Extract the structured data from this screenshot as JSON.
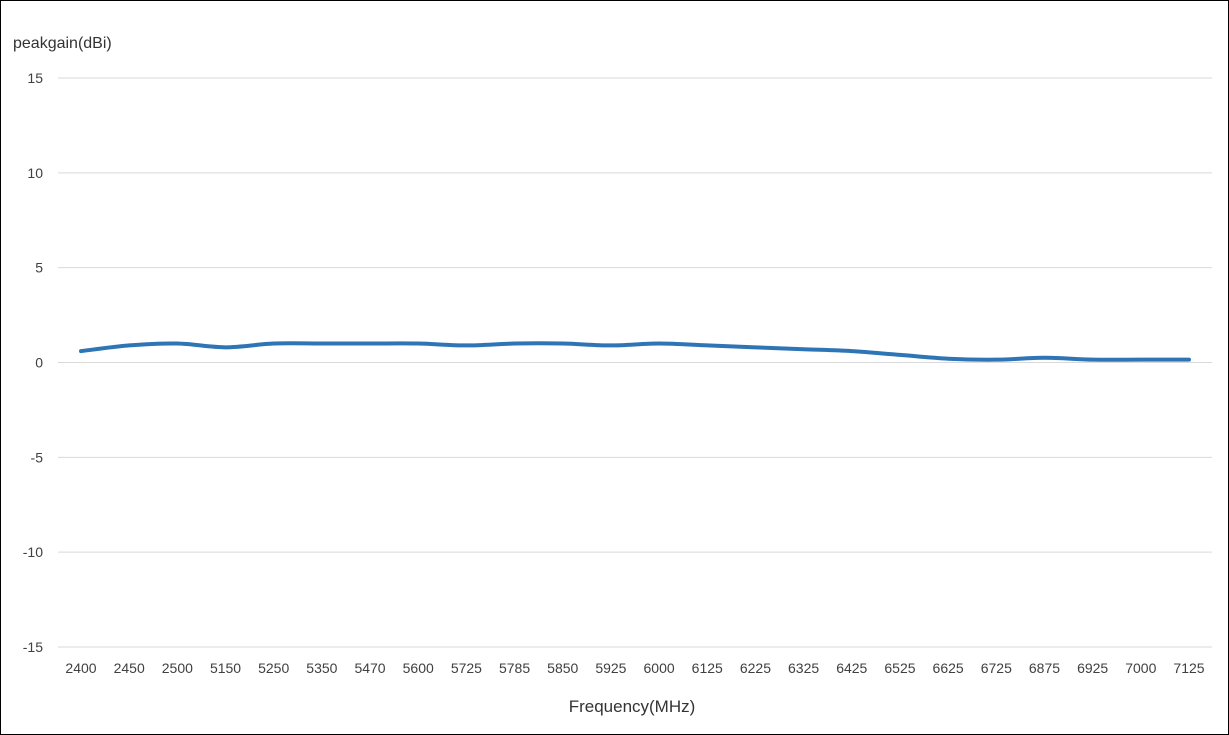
{
  "chart_data": {
    "type": "line",
    "title": "",
    "ylabel": "peakgain(dBi)",
    "xlabel": "Frequency(MHz)",
    "categories": [
      "2400",
      "2450",
      "2500",
      "5150",
      "5250",
      "5350",
      "5470",
      "5600",
      "5725",
      "5785",
      "5850",
      "5925",
      "6000",
      "6125",
      "6225",
      "6325",
      "6425",
      "6525",
      "6625",
      "6725",
      "6875",
      "6925",
      "7000",
      "7125"
    ],
    "series": [
      {
        "values": [
          0.6,
          0.9,
          1.0,
          0.8,
          1.0,
          1.0,
          1.0,
          1.0,
          0.9,
          1.0,
          1.0,
          0.9,
          1.0,
          0.9,
          0.8,
          0.7,
          0.6,
          0.4,
          0.2,
          0.15,
          0.25,
          0.15,
          0.15,
          0.15
        ],
        "color": "#2E75B6"
      }
    ],
    "yticks": [
      15,
      10,
      5,
      0,
      -5,
      -10,
      -15
    ],
    "ylim": [
      -15,
      15
    ],
    "grid": true,
    "gridColor": "#D9D9D9",
    "legend": "none"
  }
}
